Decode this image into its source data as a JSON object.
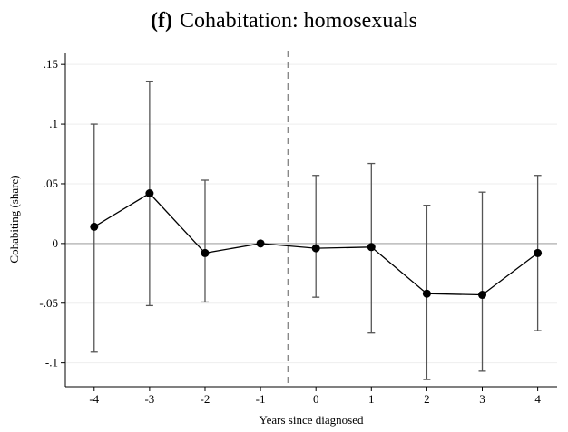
{
  "chart_data": {
    "type": "line",
    "panel": "(f)",
    "title": "Cohabitation: homosexuals",
    "x_label": "Years since diagnosed",
    "y_label": "Cohabiting (share)",
    "x": [
      -4,
      -3,
      -2,
      -1,
      0,
      1,
      2,
      3,
      4
    ],
    "values": [
      0.014,
      0.042,
      -0.008,
      0,
      -0.004,
      -0.003,
      -0.042,
      -0.043,
      -0.008
    ],
    "ci_low": [
      -0.091,
      -0.052,
      -0.049,
      null,
      -0.045,
      -0.075,
      -0.114,
      -0.107,
      -0.073
    ],
    "ci_high": [
      0.1,
      0.136,
      0.053,
      null,
      0.057,
      0.067,
      0.032,
      0.043,
      0.057
    ],
    "color": "#000000",
    "errorbar_color": "#555555",
    "xlim": [
      -4.52,
      4.35
    ],
    "ylim": [
      -0.12,
      0.16
    ],
    "xticks": [
      -4,
      -3,
      -2,
      -1,
      0,
      1,
      2,
      3,
      4
    ],
    "yticks": [
      {
        "value": -0.1,
        "label": "-.1"
      },
      {
        "value": -0.05,
        "label": "-.05"
      },
      0,
      {
        "value": 0.05,
        "label": ".05"
      },
      {
        "value": 0.1,
        "label": ".1"
      },
      {
        "value": 0.15,
        "label": ".15"
      }
    ],
    "vline": -0.5,
    "hline": 0,
    "grid": true
  }
}
